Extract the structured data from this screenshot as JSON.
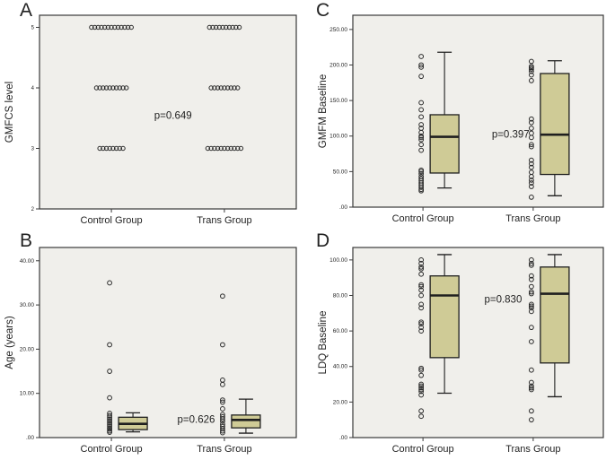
{
  "colors": {
    "box_fill": "#cfcb96",
    "box_stroke": "#1f1f1f",
    "point_stroke": "#2a2a2a",
    "plot_bg": "#f0efeb",
    "frame_stroke": "#3a3a3a",
    "text": "#1f1f1f"
  },
  "chart_data": [
    {
      "panel_label": "A",
      "type": "scatter",
      "subtype": "dotplot",
      "ylabel": "GMFCS level",
      "p_value_label": "p=0.649",
      "categories": [
        "Control Group",
        "Trans Group"
      ],
      "ytick_labels": [
        "5",
        "4",
        "3",
        "2"
      ],
      "ytick_values": [
        5,
        4,
        3,
        2
      ],
      "ylim": [
        2,
        5.2
      ],
      "p_label_pos": {
        "x_frac": 0.52,
        "y_value": 3.55
      },
      "series": [
        {
          "name": "Control Group",
          "levels": [
            5,
            4,
            3
          ],
          "counts": [
            13,
            10,
            8
          ]
        },
        {
          "name": "Trans Group",
          "levels": [
            5,
            4,
            3
          ],
          "counts": [
            10,
            9,
            11
          ]
        }
      ]
    },
    {
      "panel_label": "B",
      "type": "bar",
      "subtype": "boxplot",
      "ylabel": "Age (years)",
      "p_value_label": "p=0.626",
      "categories": [
        "Control Group",
        "Trans Group"
      ],
      "ytick_labels": [
        "40.00",
        "30.00",
        "20.00",
        "10.00",
        ".00"
      ],
      "ytick_values": [
        40,
        30,
        20,
        10,
        0
      ],
      "ylim": [
        0,
        43
      ],
      "p_label_pos": {
        "x_frac": 0.61,
        "y_value": 4.2
      },
      "series": [
        {
          "name": "Control Group",
          "points": [
            35,
            21,
            15,
            9,
            5.5,
            5,
            4.6,
            4.2,
            3.8,
            3.4,
            3,
            2.6,
            2.2,
            1.9,
            1.5,
            1.2
          ],
          "box": {
            "q1": 1.8,
            "median": 3.1,
            "q3": 4.6,
            "whisker_low": 1.3,
            "whisker_high": 5.6
          }
        },
        {
          "name": "Trans Group",
          "points": [
            32,
            21,
            13,
            12,
            8.5,
            8,
            6.5,
            5.2,
            4.7,
            4.2,
            3.7,
            3,
            2.5,
            2,
            1.5,
            1.1
          ],
          "box": {
            "q1": 2.2,
            "median": 4.0,
            "q3": 5.1,
            "whisker_low": 1.0,
            "whisker_high": 8.7
          }
        }
      ]
    },
    {
      "panel_label": "C",
      "type": "bar",
      "subtype": "boxplot",
      "ylabel": "GMFM Baseline",
      "p_value_label": "p=0.397",
      "categories": [
        "Control Group",
        "Trans Group"
      ],
      "ytick_labels": [
        "250.00",
        "200.00",
        "150.00",
        "100.00",
        "50.00",
        ".00"
      ],
      "ytick_values": [
        250,
        200,
        150,
        100,
        50,
        0
      ],
      "ylim": [
        0,
        270
      ],
      "p_label_pos": {
        "x_frac": 0.63,
        "y_value": 103
      },
      "series": [
        {
          "name": "Control Group",
          "points": [
            212,
            200,
            197,
            184,
            147,
            137,
            127,
            116,
            111,
            105,
            100,
            98,
            95,
            88,
            80,
            52,
            50,
            47,
            43,
            40,
            37,
            34,
            31,
            28,
            25,
            23
          ],
          "box": {
            "q1": 48,
            "median": 99,
            "q3": 130,
            "whisker_low": 27,
            "whisker_high": 218
          }
        },
        {
          "name": "Trans Group",
          "points": [
            205,
            198,
            196,
            194,
            191,
            186,
            178,
            124,
            119,
            111,
            104,
            98,
            88,
            85,
            66,
            61,
            56,
            49,
            43,
            38,
            34,
            29,
            14
          ],
          "box": {
            "q1": 46,
            "median": 102,
            "q3": 188,
            "whisker_low": 16,
            "whisker_high": 206
          }
        }
      ]
    },
    {
      "panel_label": "D",
      "type": "bar",
      "subtype": "boxplot",
      "ylabel": "LDQ Baseline",
      "p_value_label": "p=0.830",
      "categories": [
        "Control Group",
        "Trans Group"
      ],
      "ytick_labels": [
        "100.00",
        "80.00",
        "60.00",
        "40.00",
        "20.00",
        ".00"
      ],
      "ytick_values": [
        100,
        80,
        60,
        40,
        20,
        0
      ],
      "ylim": [
        0,
        107
      ],
      "p_label_pos": {
        "x_frac": 0.6,
        "y_value": 78
      },
      "series": [
        {
          "name": "Control Group",
          "points": [
            100,
            98,
            96,
            95,
            92,
            86,
            85,
            83,
            80,
            75,
            73,
            65,
            64,
            62,
            60,
            39,
            38,
            35,
            30,
            29,
            28,
            27,
            26,
            24,
            15,
            12
          ],
          "box": {
            "q1": 45,
            "median": 80,
            "q3": 91,
            "whisker_low": 25,
            "whisker_high": 103
          }
        },
        {
          "name": "Trans Group",
          "points": [
            100,
            98,
            97,
            91,
            89,
            85,
            82,
            81,
            75,
            74,
            73,
            71,
            62,
            54,
            38,
            31,
            29,
            28,
            27,
            15,
            10
          ],
          "box": {
            "q1": 42,
            "median": 81,
            "q3": 96,
            "whisker_low": 23,
            "whisker_high": 103
          }
        }
      ]
    }
  ]
}
